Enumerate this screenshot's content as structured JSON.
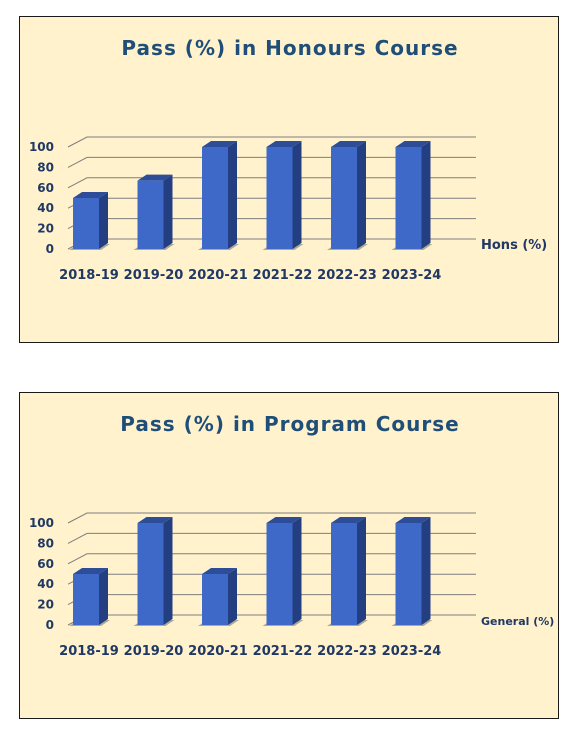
{
  "chart_data": [
    {
      "type": "bar",
      "title": "Pass (%) in Honours Course",
      "categories": [
        "2018-19",
        "2019-20",
        "2020-21",
        "2021-22",
        "2022-23",
        "2023-24"
      ],
      "series": [
        {
          "name": "Hons (%)",
          "values": [
            50,
            67,
            100,
            100,
            100,
            100
          ]
        }
      ],
      "yticks": [
        "0",
        "20",
        "40",
        "60",
        "80",
        "100"
      ],
      "ylim": [
        0,
        100
      ],
      "grid": true,
      "legend_position": "right",
      "colors": {
        "bar_front": "#3f69c8",
        "bar_side": "#233f82",
        "bar_top": "#2d4d99",
        "title": "#1f4e79",
        "axis_text": "#1f3864"
      }
    },
    {
      "type": "bar",
      "title": "Pass (%) in Program Course",
      "categories": [
        "2018-19",
        "2019-20",
        "2020-21",
        "2021-22",
        "2022-23",
        "2023-24"
      ],
      "series": [
        {
          "name": "General (%)",
          "values": [
            50,
            100,
            50,
            100,
            100,
            100
          ]
        }
      ],
      "yticks": [
        "0",
        "20",
        "40",
        "60",
        "80",
        "100"
      ],
      "ylim": [
        0,
        100
      ],
      "grid": true,
      "legend_position": "right",
      "colors": {
        "bar_front": "#3f69c8",
        "bar_side": "#233f82",
        "bar_top": "#2d4d99",
        "title": "#1f4e79",
        "axis_text": "#1f3864"
      }
    }
  ]
}
